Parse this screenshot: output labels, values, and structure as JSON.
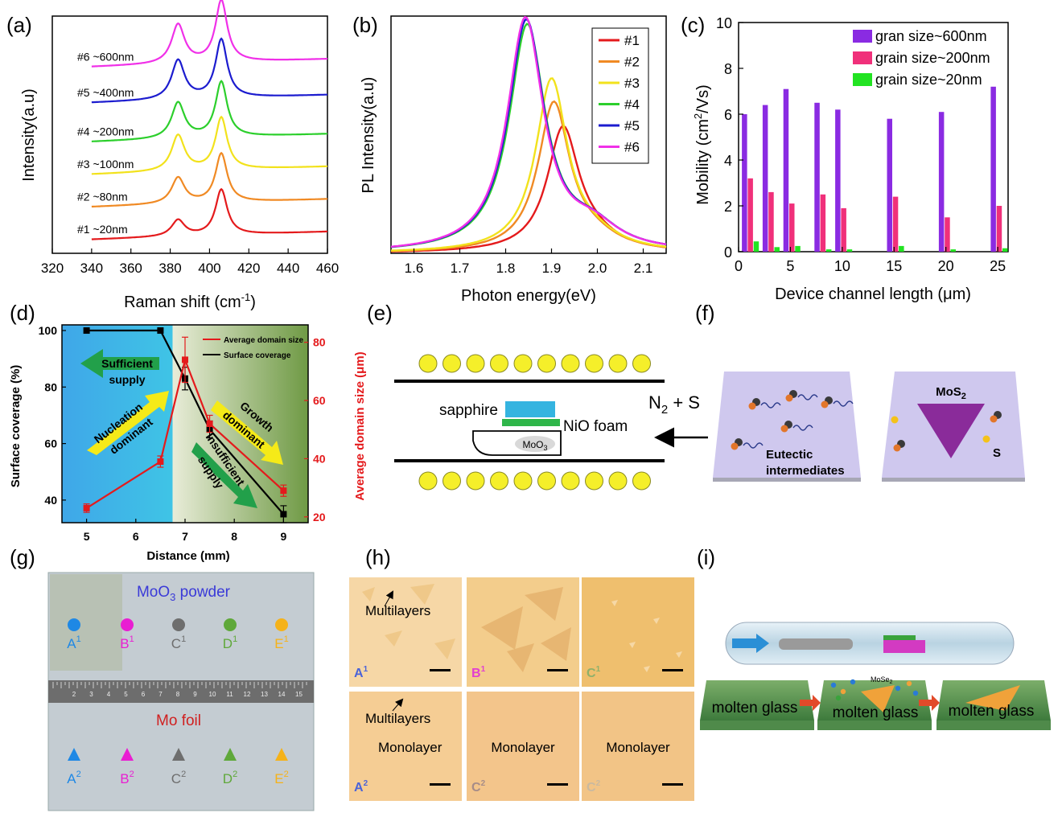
{
  "panel_labels": [
    "(a)",
    "(b)",
    "(c)",
    "(d)",
    "(e)",
    "(f)",
    "(g)",
    "(h)",
    "(i)"
  ],
  "colors": {
    "red": "#e41a1c",
    "orange": "#f08a24",
    "yellow": "#f2e21c",
    "green": "#2ccf2c",
    "blue": "#1c1ccf",
    "magenta": "#f030e8",
    "purple": "#8a2be2",
    "pink": "#f0307a",
    "lime": "#22e322"
  },
  "chart_data": [
    {
      "type": "line",
      "xlabel": "Raman shift (cm",
      "xlabel_sup": "-1",
      "xlabel_tail": ")",
      "ylabel": "Intensity(a.u)",
      "xlim": [
        320,
        460
      ],
      "xticks": [
        "320",
        "340",
        "360",
        "380",
        "400",
        "420",
        "440",
        "460"
      ],
      "peaks": [
        384,
        406
      ],
      "series": [
        {
          "name": "#1 ~20nm",
          "color": "#e41a1c",
          "baseline": 0.2,
          "p1": 0.5,
          "p2": 1.4
        },
        {
          "name": "#2 ~80nm",
          "color": "#f08a24",
          "baseline": 1.2,
          "p1": 0.8,
          "p2": 1.5
        },
        {
          "name": "#3 ~100nm",
          "color": "#f2e21c",
          "baseline": 2.2,
          "p1": 1.1,
          "p2": 1.6
        },
        {
          "name": "#4 ~200nm",
          "color": "#2ccf2c",
          "baseline": 3.2,
          "p1": 1.1,
          "p2": 1.7
        },
        {
          "name": "#5 ~400nm",
          "color": "#1c1ccf",
          "baseline": 4.4,
          "p1": 1.2,
          "p2": 1.8
        },
        {
          "name": "#6 ~600nm",
          "color": "#f030e8",
          "baseline": 5.5,
          "p1": 1.2,
          "p2": 1.9
        }
      ]
    },
    {
      "type": "line",
      "xlabel": "Photon energy(eV)",
      "ylabel": "PL Intensity(a.u)",
      "xlim": [
        1.55,
        2.15
      ],
      "xticks": [
        "1.6",
        "1.7",
        "1.8",
        "1.9",
        "2.0",
        "2.1"
      ],
      "series": [
        {
          "name": "#1",
          "color": "#e41a1c",
          "center": 1.925,
          "height": 0.51
        },
        {
          "name": "#2",
          "color": "#f08a24",
          "center": 1.905,
          "height": 0.62
        },
        {
          "name": "#3",
          "color": "#f2e21c",
          "center": 1.9,
          "height": 0.72
        },
        {
          "name": "#4",
          "color": "#2ccf2c",
          "center": 1.847,
          "height": 0.95
        },
        {
          "name": "#5",
          "color": "#1c1ccf",
          "center": 1.845,
          "height": 0.97
        },
        {
          "name": "#6",
          "color": "#f030e8",
          "center": 1.843,
          "height": 0.98
        }
      ]
    },
    {
      "type": "bar",
      "xlabel": "Device channel length (μm)",
      "ylabel": "Mobility (cm²/Vs)",
      "ylim": [
        0,
        10
      ],
      "xlim": [
        0,
        26
      ],
      "xticks": [
        "0",
        "5",
        "10",
        "15",
        "20",
        "25"
      ],
      "yticks": [
        "0",
        "2",
        "4",
        "6",
        "8",
        "10"
      ],
      "x": [
        1,
        3,
        5,
        8,
        10,
        15,
        20,
        25
      ],
      "series": [
        {
          "name": "gran size~600nm",
          "color": "#8a2be2",
          "values": [
            6.0,
            6.4,
            7.1,
            6.5,
            6.2,
            5.8,
            6.1,
            7.2
          ]
        },
        {
          "name": "grain size~200nm",
          "color": "#f0307a",
          "values": [
            3.2,
            2.6,
            2.1,
            2.5,
            1.9,
            2.4,
            1.5,
            2.0
          ]
        },
        {
          "name": "grain size~20nm",
          "color": "#22e322",
          "values": [
            0.45,
            0.2,
            0.25,
            0.1,
            0.1,
            0.25,
            0.1,
            0.15
          ]
        }
      ]
    },
    {
      "type": "line",
      "xlabel": "Distance (mm)",
      "ylabel": "Surface coverage (%)",
      "ylabel_right": "Average domain size (μm)",
      "xlim": [
        4.5,
        9.5
      ],
      "ylim": [
        32,
        102
      ],
      "ylim_right": [
        18,
        86
      ],
      "xticks": [
        "5",
        "6",
        "7",
        "8",
        "9"
      ],
      "yticks": [
        "40",
        "60",
        "80",
        "100"
      ],
      "yticks_right": [
        "20",
        "40",
        "60",
        "80"
      ],
      "series": [
        {
          "name": "Surface coverage",
          "color": "#000000",
          "axis": "left",
          "x": [
            5,
            6.5,
            7,
            7.5,
            9
          ],
          "y": [
            100,
            100,
            83,
            65,
            35
          ]
        },
        {
          "name": "Average domain size",
          "color": "#e41a1c",
          "axis": "right",
          "x": [
            5,
            6.5,
            7,
            7.5,
            9
          ],
          "y": [
            23,
            39,
            74,
            52,
            29
          ]
        }
      ],
      "annotations": [
        "Sufficient",
        "supply",
        "Nucleation",
        "dominant",
        "Growth",
        "dominant",
        "Insufficient",
        "supply"
      ]
    }
  ],
  "panel_e": {
    "sapphire": "sapphire",
    "foam": "NiO foam",
    "source": "MoO",
    "source_sub": "3",
    "gas": "N",
    "gas_sub": "2",
    "gas_tail": " + S"
  },
  "panel_f": {
    "label1": "Eutectic",
    "label2": "intermediates",
    "mos2": "MoS",
    "mos2_sub": "2",
    "s": "S"
  },
  "panel_g": {
    "top_label": "MoO",
    "top_sub": "3",
    "top_tail": " powder",
    "bottom_label": "Mo foil",
    "dots": [
      {
        "letter": "A",
        "sup": "1",
        "color": "#1e88e5"
      },
      {
        "letter": "B",
        "sup": "1",
        "color": "#e91ed2"
      },
      {
        "letter": "C",
        "sup": "1",
        "color": "#6e6e6e"
      },
      {
        "letter": "D",
        "sup": "1",
        "color": "#5fa83a"
      },
      {
        "letter": "E",
        "sup": "1",
        "color": "#f5b21a"
      }
    ],
    "triangles": [
      {
        "letter": "A",
        "sup": "2",
        "color": "#1e88e5"
      },
      {
        "letter": "B",
        "sup": "2",
        "color": "#e91ed2"
      },
      {
        "letter": "C",
        "sup": "2",
        "color": "#6e6e6e"
      },
      {
        "letter": "D",
        "sup": "2",
        "color": "#5fa83a"
      },
      {
        "letter": "E",
        "sup": "2",
        "color": "#f5b21a"
      }
    ],
    "ruler_numbers": [
      "2",
      "3",
      "4",
      "5",
      "6",
      "7",
      "8",
      "9",
      "10",
      "11",
      "12",
      "13",
      "14",
      "15"
    ]
  },
  "panel_h": {
    "tiles": [
      {
        "text": "Multilayers",
        "tag": "A",
        "sup": "1",
        "tag_color": "#4a63d8"
      },
      {
        "text": "",
        "tag": "B",
        "sup": "1",
        "tag_color": "#e23fd1"
      },
      {
        "text": "",
        "tag": "C",
        "sup": "1",
        "tag_color": "#8fb06a"
      },
      {
        "text": "Multilayers",
        "text2": "Monolayer",
        "tag": "A",
        "sup": "2",
        "tag_color": "#4a63d8"
      },
      {
        "text": "Monolayer",
        "tag": "C",
        "sup": "2",
        "tag_color": "#a68c88"
      },
      {
        "text": "Monolayer",
        "tag": "C",
        "sup": "2",
        "tag_color": "#c9b9a0"
      }
    ]
  },
  "panel_i": {
    "glass": "molten glass",
    "mose2": "MoSe",
    "mose2_sub": "2"
  }
}
